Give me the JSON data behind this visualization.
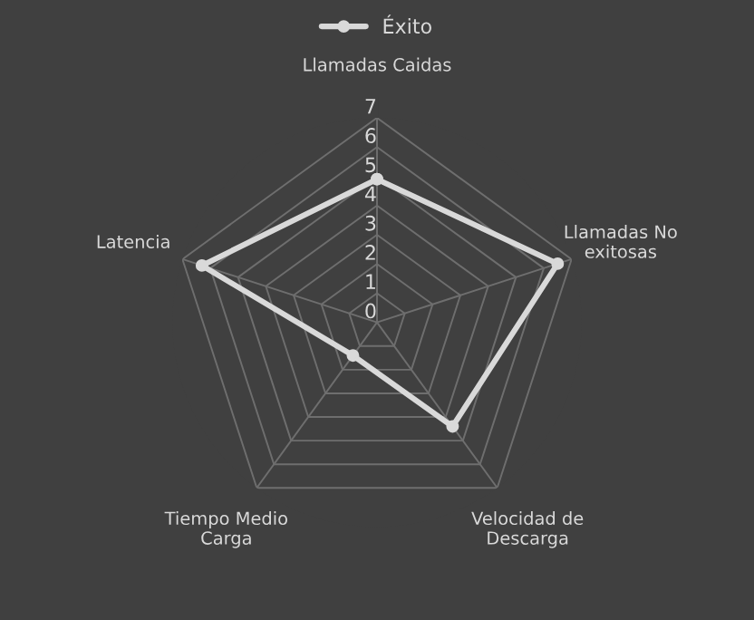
{
  "chart_data": {
    "type": "radar",
    "categories": [
      "Llamadas Caidas",
      "Llamadas No\nexitosas",
      "Velocidad de\nDescarga",
      "Tiempo Medio\nCarga",
      "Latencia"
    ],
    "series": [
      {
        "name": "Éxito",
        "color": "#d9d9d9",
        "values": [
          4.9,
          6.5,
          4.4,
          1.4,
          6.3
        ]
      }
    ],
    "ylim": [
      0,
      7
    ],
    "yticks": [
      0,
      1,
      2,
      3,
      4,
      5,
      6,
      7
    ],
    "grid": true,
    "legend": "top",
    "marker": "circle"
  }
}
